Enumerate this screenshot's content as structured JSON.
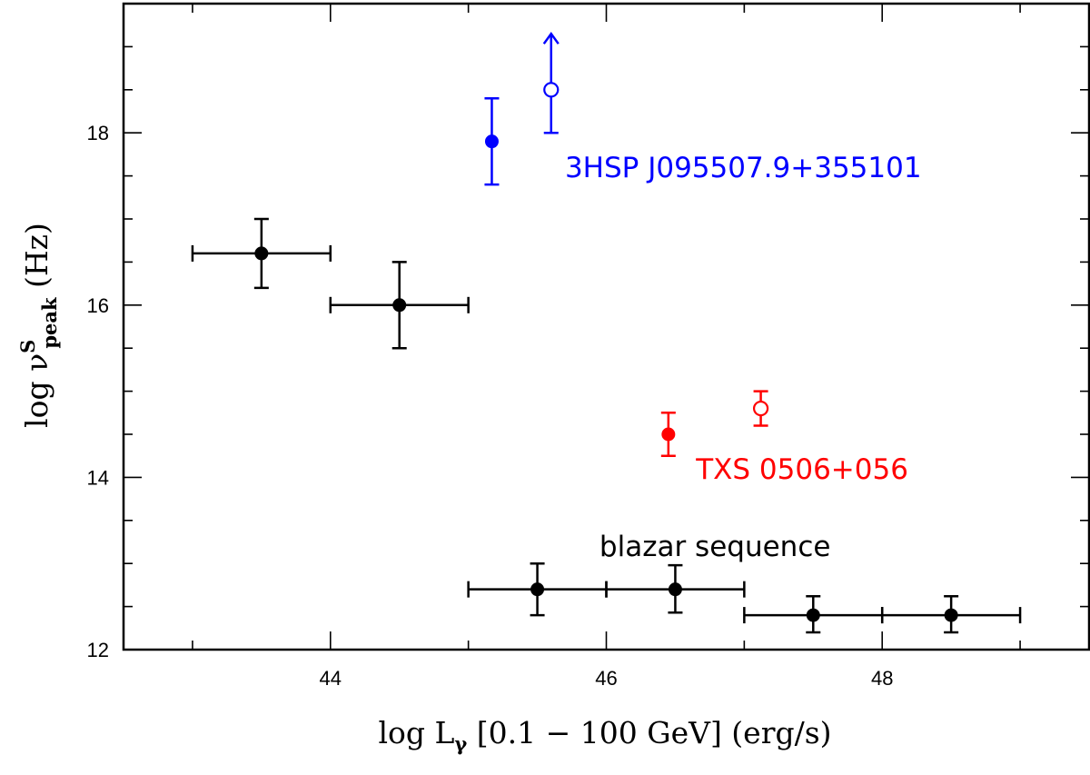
{
  "chart_data": {
    "type": "scatter",
    "title": "",
    "xlabel": {
      "prefix": "log L",
      "subscript": "γ",
      "suffix": " [0.1 − 100 GeV] (erg/s)"
    },
    "ylabel": {
      "prefix": "log ν",
      "superscript": "S",
      "subscript": "peak",
      "suffix": " (Hz)"
    },
    "xlim": [
      42.5,
      49.5
    ],
    "ylim": [
      12,
      19.5
    ],
    "x_ticks": [
      44,
      46,
      48
    ],
    "y_ticks": [
      12,
      14,
      16,
      18
    ],
    "x_minor_step": 1,
    "y_minor_step": 0.5,
    "grid": false,
    "series": [
      {
        "name": "blazar sequence",
        "color": "#000000",
        "filled": true,
        "points": [
          {
            "x": 43.5,
            "y": 16.6,
            "xerr": 0.5,
            "yerr_low": 0.4,
            "yerr_high": 0.4
          },
          {
            "x": 44.5,
            "y": 16.0,
            "xerr": 0.5,
            "yerr_low": 0.5,
            "yerr_high": 0.5
          },
          {
            "x": 45.5,
            "y": 12.7,
            "xerr": 0.5,
            "yerr_low": 0.3,
            "yerr_high": 0.3
          },
          {
            "x": 46.5,
            "y": 12.7,
            "xerr": 0.5,
            "yerr_low": 0.27,
            "yerr_high": 0.28
          },
          {
            "x": 47.5,
            "y": 12.4,
            "xerr": 0.5,
            "yerr_low": 0.2,
            "yerr_high": 0.22
          },
          {
            "x": 48.5,
            "y": 12.4,
            "xerr": 0.5,
            "yerr_low": 0.2,
            "yerr_high": 0.22
          }
        ]
      },
      {
        "name": "3HSP J095507.9+355101",
        "color": "#0000ff",
        "points": [
          {
            "x": 45.17,
            "y": 17.9,
            "yerr_low": 0.5,
            "yerr_high": 0.5,
            "filled": true
          },
          {
            "x": 45.6,
            "y": 18.5,
            "yerr_low": 0.5,
            "yerr_high": 0.65,
            "filled": false,
            "lower_limit_arrow": true
          }
        ]
      },
      {
        "name": "TXS 0506+056",
        "color": "#ff0000",
        "points": [
          {
            "x": 46.45,
            "y": 14.5,
            "yerr_low": 0.25,
            "yerr_high": 0.25,
            "filled": true
          },
          {
            "x": 47.12,
            "y": 14.8,
            "yerr_low": 0.2,
            "yerr_high": 0.2,
            "filled": false
          }
        ]
      }
    ],
    "annotations": [
      {
        "text": "3HSP J095507.9+355101",
        "x": 45.7,
        "y": 17.6,
        "color": "#0000ff"
      },
      {
        "text": "TXS 0506+056",
        "x": 46.65,
        "y": 14.1,
        "color": "#ff0000"
      },
      {
        "text": "blazar sequence",
        "x": 45.95,
        "y": 13.2,
        "color": "#000000"
      }
    ]
  }
}
